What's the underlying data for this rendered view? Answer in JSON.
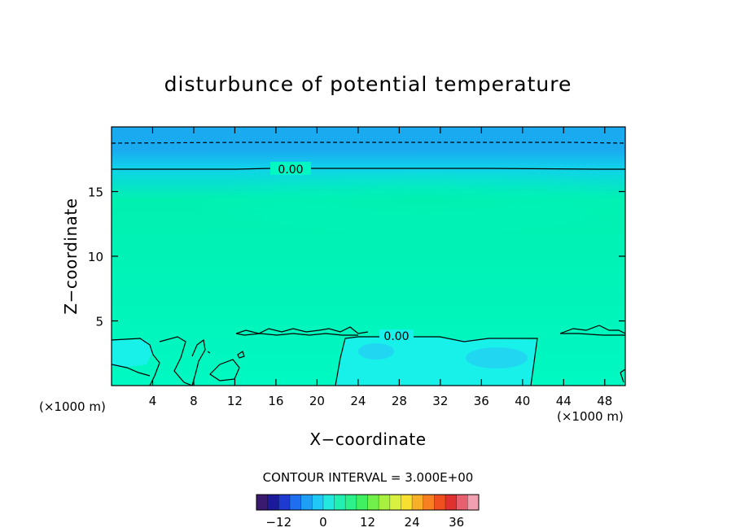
{
  "chart_data": {
    "type": "contour",
    "title": "disturbunce of potential temperature",
    "xlabel": "X−coordinate",
    "ylabel": "Z−coordinate",
    "x_unit_left": "(×1000 m)",
    "x_unit_right": "(×1000 m)",
    "xlim": [
      0,
      50
    ],
    "ylim": [
      0,
      20
    ],
    "x_ticks": [
      4,
      8,
      12,
      16,
      20,
      24,
      28,
      32,
      36,
      40,
      44,
      48
    ],
    "x_tick_labels": [
      "4",
      "8",
      "12",
      "16",
      "20",
      "24",
      "28",
      "32",
      "36",
      "40",
      "44",
      "48"
    ],
    "y_ticks": [
      5,
      10,
      15
    ],
    "y_tick_labels": [
      "5",
      "10",
      "15"
    ],
    "contour_interval_text": "CONTOUR INTERVAL = 3.000E+00",
    "contour_interval": 3.0,
    "contour_labels": [
      {
        "x": 18.2,
        "z": 16.7,
        "text": "0.00"
      },
      {
        "x": 28.3,
        "z": 3.8,
        "text": "0.00"
      }
    ],
    "colorbar": {
      "range": [
        -18,
        42
      ],
      "tick_values": [
        -12,
        0,
        12,
        24,
        36
      ],
      "tick_labels": [
        "−12",
        "0",
        "12",
        "24",
        "36"
      ],
      "colors": [
        "#3a1a6e",
        "#1a1a9a",
        "#1f3ad0",
        "#1f6ef0",
        "#1e9ef5",
        "#20c8f5",
        "#22e8e0",
        "#22f0b0",
        "#2cf08a",
        "#40f060",
        "#70f048",
        "#a8f040",
        "#d8f040",
        "#f8e030",
        "#f8b028",
        "#f88020",
        "#f05020",
        "#e03030",
        "#e86070",
        "#f0a0b0"
      ]
    },
    "field_colors": {
      "base": "#00f8c2",
      "top_band": "#1aaaf0",
      "upper_band": "#10d2ea",
      "core": "#00f0b0",
      "lower_region": "#18f0ea",
      "cool_patch": "#20d6f0"
    },
    "grid": false
  }
}
